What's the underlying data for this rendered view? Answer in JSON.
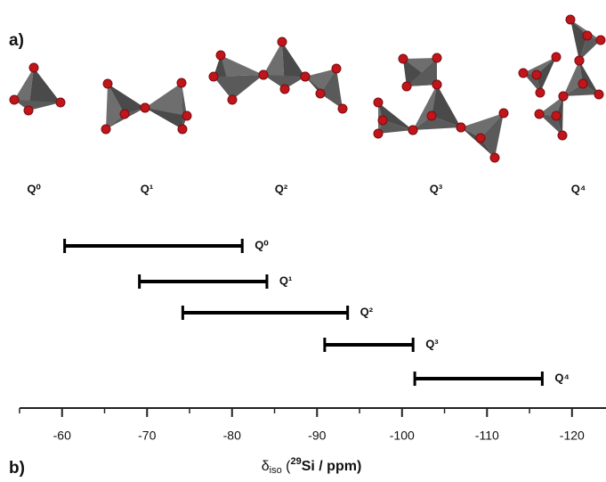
{
  "panel_a": {
    "label": "a)",
    "structures": [
      "Q⁰",
      "Q¹",
      "Q²",
      "Q³",
      "Q⁴"
    ]
  },
  "chart_data": {
    "type": "range",
    "panel_label": "b)",
    "x_label": {
      "symbol": "δ",
      "subscript": "iso",
      "open": " (",
      "isotope": "29",
      "rest": "Si / ppm)"
    },
    "categories": [
      "Q⁰",
      "Q¹",
      "Q²",
      "Q³",
      "Q⁴"
    ],
    "starts": [
      -60.3,
      -69.1,
      -74.2,
      -90.9,
      -101.5
    ],
    "ends": [
      -81.2,
      -84.1,
      -93.6,
      -101.3,
      -116.5
    ],
    "color": "#000000",
    "xlim": [
      -55,
      -124
    ],
    "xticks": [
      -60,
      -70,
      -80,
      -90,
      -100,
      -110,
      -120
    ],
    "xminorticks": [
      -55,
      -65,
      -75,
      -85,
      -95,
      -105,
      -115
    ]
  }
}
